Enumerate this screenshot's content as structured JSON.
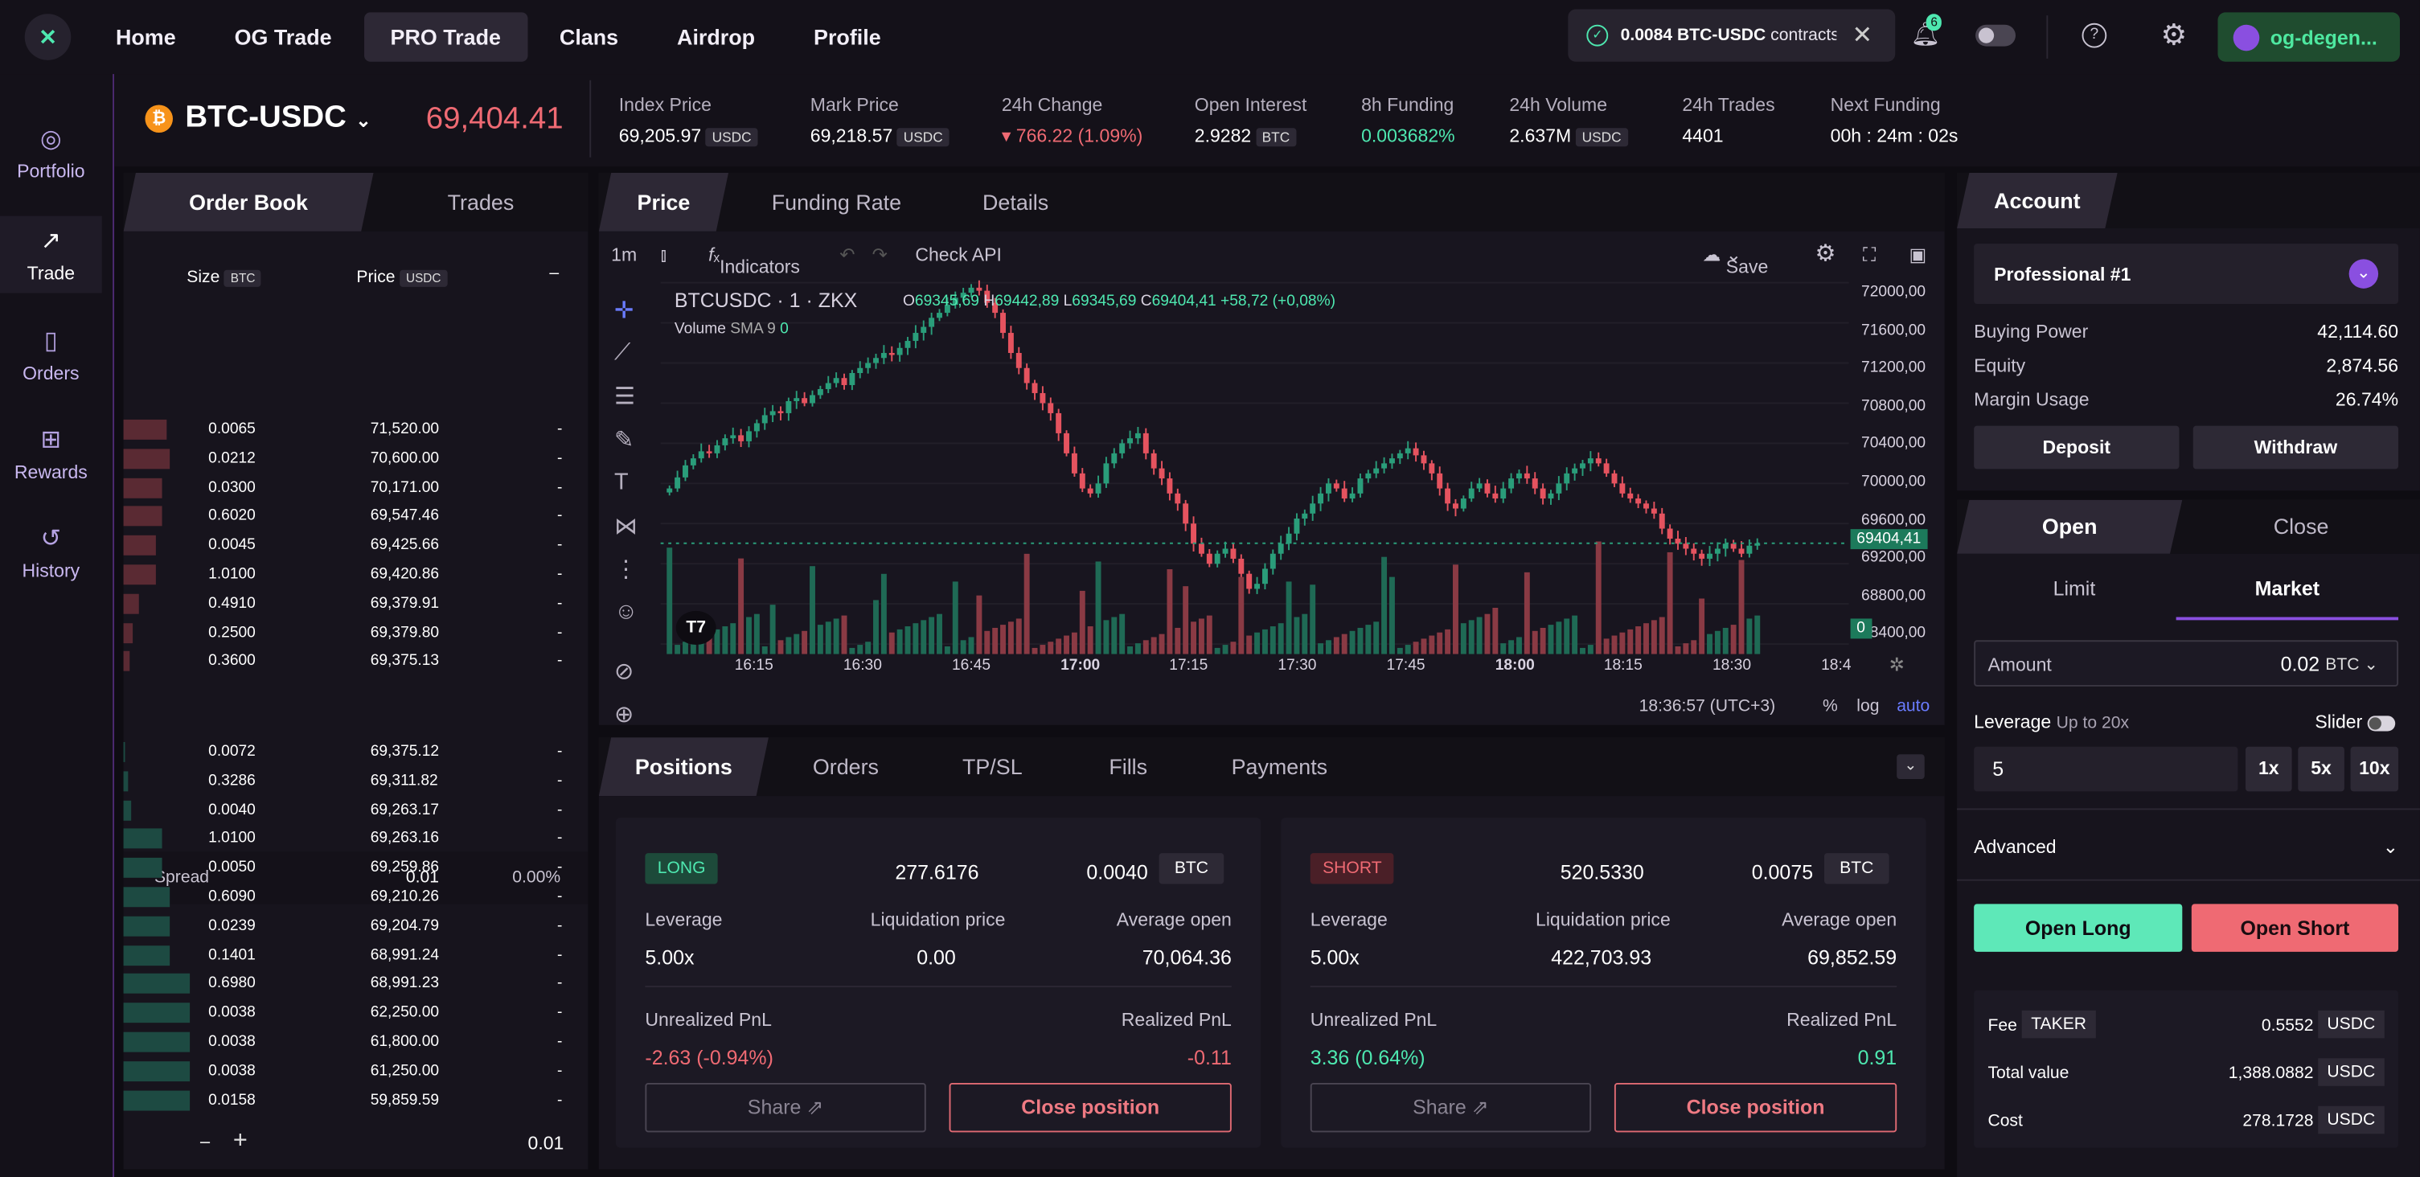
{
  "nav": {
    "items": [
      "Home",
      "OG Trade",
      "PRO Trade",
      "Clans",
      "Airdrop",
      "Profile"
    ]
  },
  "notification": {
    "amount": "0.0084 BTC-USDC",
    "text": "contracts"
  },
  "bell_count": "6",
  "account_name": "og-degen...",
  "sidebar": {
    "items": [
      "Portfolio",
      "Trade",
      "Orders",
      "Rewards",
      "History"
    ]
  },
  "ticker": {
    "symbol": "BTC-USDC",
    "last_price": "69,404.41",
    "stats": [
      {
        "label": "Index Price",
        "value": "69,205.97",
        "unit": "USDC"
      },
      {
        "label": "Mark Price",
        "value": "69,218.57",
        "unit": "USDC"
      },
      {
        "label": "24h Change",
        "value": "▾ 766.22 (1.09%)",
        "unit": ""
      },
      {
        "label": "Open Interest",
        "value": "2.9282",
        "unit": "BTC"
      },
      {
        "label": "8h Funding",
        "value": "0.003682%",
        "unit": ""
      },
      {
        "label": "24h Volume",
        "value": "2.637M",
        "unit": "USDC"
      },
      {
        "label": "24h Trades",
        "value": "4401",
        "unit": ""
      },
      {
        "label": "Next Funding",
        "value": "00h : 24m : 02s",
        "unit": ""
      }
    ]
  },
  "orderbook": {
    "tabs": [
      "Order Book",
      "Trades"
    ],
    "size_header": "Size",
    "size_unit": "BTC",
    "price_header": "Price",
    "price_unit": "USDC",
    "collapse": "–",
    "asks": [
      {
        "size": "0.0065",
        "price": "71,520.00",
        "total": "-",
        "depth": 0.55
      },
      {
        "size": "0.0212",
        "price": "70,600.00",
        "total": "-",
        "depth": 0.6
      },
      {
        "size": "0.0300",
        "price": "70,171.00",
        "total": "-",
        "depth": 0.5
      },
      {
        "size": "0.6020",
        "price": "69,547.46",
        "total": "-",
        "depth": 0.5
      },
      {
        "size": "0.0045",
        "price": "69,425.66",
        "total": "-",
        "depth": 0.42
      },
      {
        "size": "1.0100",
        "price": "69,420.86",
        "total": "-",
        "depth": 0.42
      },
      {
        "size": "0.4910",
        "price": "69,379.91",
        "total": "-",
        "depth": 0.2
      },
      {
        "size": "0.2500",
        "price": "69,379.80",
        "total": "-",
        "depth": 0.12
      },
      {
        "size": "0.3600",
        "price": "69,375.13",
        "total": "-",
        "depth": 0.08
      }
    ],
    "spread_label": "Spread",
    "spread_value": "0.01",
    "spread_pct": "0.00%",
    "bids": [
      {
        "size": "0.0072",
        "price": "69,375.12",
        "total": "-",
        "depth": 0.02
      },
      {
        "size": "0.3286",
        "price": "69,311.82",
        "total": "-",
        "depth": 0.06
      },
      {
        "size": "0.0040",
        "price": "69,263.17",
        "total": "-",
        "depth": 0.1
      },
      {
        "size": "1.0100",
        "price": "69,263.16",
        "total": "-",
        "depth": 0.5
      },
      {
        "size": "0.0050",
        "price": "69,259.86",
        "total": "-",
        "depth": 0.5
      },
      {
        "size": "0.6090",
        "price": "69,210.26",
        "total": "-",
        "depth": 0.6
      },
      {
        "size": "0.0239",
        "price": "69,204.79",
        "total": "-",
        "depth": 0.6
      },
      {
        "size": "0.1401",
        "price": "68,991.24",
        "total": "-",
        "depth": 0.6
      },
      {
        "size": "0.6980",
        "price": "68,991.23",
        "total": "-",
        "depth": 0.85
      },
      {
        "size": "0.0038",
        "price": "62,250.00",
        "total": "-",
        "depth": 0.85
      },
      {
        "size": "0.0038",
        "price": "61,800.00",
        "total": "-",
        "depth": 0.85
      },
      {
        "size": "0.0038",
        "price": "61,250.00",
        "total": "-",
        "depth": 0.85
      },
      {
        "size": "0.0158",
        "price": "59,859.59",
        "total": "-",
        "depth": 0.85
      }
    ],
    "grouping": "0.01"
  },
  "chart": {
    "tabs": [
      "Price",
      "Funding Rate",
      "Details"
    ],
    "interval": "1m",
    "indicators": "Indicators",
    "check_api": "Check API",
    "save": "Save",
    "symbol_line": "BTCUSDC · 1 · ZKX",
    "ohlc": {
      "o": "69345,69",
      "h": "69442,89",
      "l": "69345,69",
      "c": "69404,41",
      "chg": "+58,72 (+0,08%)"
    },
    "volume_label": "Volume",
    "volume_sma": "SMA 9",
    "volume_val": "0",
    "y_ticks": [
      "72000,00",
      "71600,00",
      "71200,00",
      "70800,00",
      "70400,00",
      "70000,00",
      "69600,00",
      "69200,00",
      "68800,00",
      "68400,00"
    ],
    "price_tag": "69404,41",
    "vol_tag": "0",
    "x_ticks": [
      "16:15",
      "16:30",
      "16:45",
      "17:00",
      "17:15",
      "17:30",
      "17:45",
      "18:00",
      "18:15",
      "18:30",
      "18:4"
    ],
    "time": "18:36:57 (UTC+3)",
    "pct": "%",
    "log": "log",
    "auto": "auto",
    "candles_close": [
      69950,
      70060,
      70180,
      70250,
      70320,
      70300,
      70380,
      70450,
      70480,
      70420,
      70520,
      70600,
      70680,
      70720,
      70700,
      70820,
      70850,
      70800,
      70880,
      70940,
      71000,
      71050,
      70980,
      71100,
      71150,
      71200,
      71250,
      71300,
      71280,
      71350,
      71420,
      71500,
      71560,
      71650,
      71700,
      71780,
      71850,
      71900,
      71950,
      71920,
      71800,
      71700,
      71500,
      71300,
      71150,
      71000,
      70900,
      70800,
      70700,
      70500,
      70300,
      70100,
      69950,
      69900,
      70000,
      70200,
      70300,
      70400,
      70450,
      70500,
      70300,
      70150,
      70050,
      69900,
      69800,
      69600,
      69400,
      69300,
      69200,
      69300,
      69350,
      69250,
      69100,
      68950,
      69000,
      69150,
      69300,
      69400,
      69500,
      69650,
      69700,
      69800,
      69900,
      70000,
      69950,
      69850,
      69900,
      70050,
      70100,
      70150,
      70200,
      70250,
      70300,
      70350,
      70280,
      70200,
      70100,
      69950,
      69800,
      69750,
      69850,
      69950,
      70000,
      69900,
      69850,
      69950,
      70050,
      70100,
      70050,
      69950,
      69850,
      69900,
      70000,
      70100,
      70150,
      70200,
      70250,
      70200,
      70100,
      70000,
      69900,
      69850,
      69800,
      69750,
      69700,
      69550,
      69450,
      69400,
      69350,
      69300,
      69250,
      69300,
      69350,
      69400,
      69350,
      69300,
      69380,
      69404
    ]
  },
  "positions": {
    "tabs": [
      "Positions",
      "Orders",
      "TP/SL",
      "Fills",
      "Payments"
    ],
    "cards": [
      {
        "side": "LONG",
        "notional": "277.6176",
        "qty": "0.0040",
        "unit": "BTC",
        "leverage_label": "Leverage",
        "leverage": "5.00x",
        "liq_label": "Liquidation price",
        "liq": "0.00",
        "avg_label": "Average open",
        "avg": "70,064.36",
        "upnl_label": "Unrealized PnL",
        "upnl": "-2.63 (-0.94%)",
        "rpnl_label": "Realized PnL",
        "rpnl": "-0.11",
        "share": "Share",
        "close": "Close position"
      },
      {
        "side": "SHORT",
        "notional": "520.5330",
        "qty": "0.0075",
        "unit": "BTC",
        "leverage_label": "Leverage",
        "leverage": "5.00x",
        "liq_label": "Liquidation price",
        "liq": "422,703.93",
        "avg_label": "Average open",
        "avg": "69,852.59",
        "upnl_label": "Unrealized PnL",
        "upnl": "3.36 (0.64%)",
        "rpnl_label": "Realized PnL",
        "rpnl": "0.91",
        "share": "Share",
        "close": "Close position"
      }
    ]
  },
  "account": {
    "tab": "Account",
    "profile": "Professional #1",
    "rows": [
      {
        "label": "Buying Power",
        "value": "42,114.60"
      },
      {
        "label": "Equity",
        "value": "2,874.56"
      },
      {
        "label": "Margin Usage",
        "value": "26.74%"
      }
    ],
    "deposit": "Deposit",
    "withdraw": "Withdraw"
  },
  "order": {
    "tabs": [
      "Open",
      "Close"
    ],
    "types": [
      "Limit",
      "Market"
    ],
    "amount_label": "Amount",
    "amount_value": "0.02",
    "amount_unit": "BTC",
    "leverage_label": "Leverage",
    "leverage_hint": "Up to 20x",
    "slider_label": "Slider",
    "leverage_value": "5",
    "lev_presets": [
      "1x",
      "5x",
      "10x"
    ],
    "advanced": "Advanced",
    "open_long": "Open Long",
    "open_short": "Open Short",
    "fees": [
      {
        "label": "Fee",
        "tag": "TAKER",
        "value": "0.5552",
        "unit": "USDC"
      },
      {
        "label": "Total value",
        "tag": "",
        "value": "1,388.0882",
        "unit": "USDC"
      },
      {
        "label": "Cost",
        "tag": "",
        "value": "278.1728",
        "unit": "USDC"
      }
    ]
  },
  "colors": {
    "green": "#4ee8b0",
    "red": "#ef6a73",
    "accent": "#8a4fe0"
  }
}
